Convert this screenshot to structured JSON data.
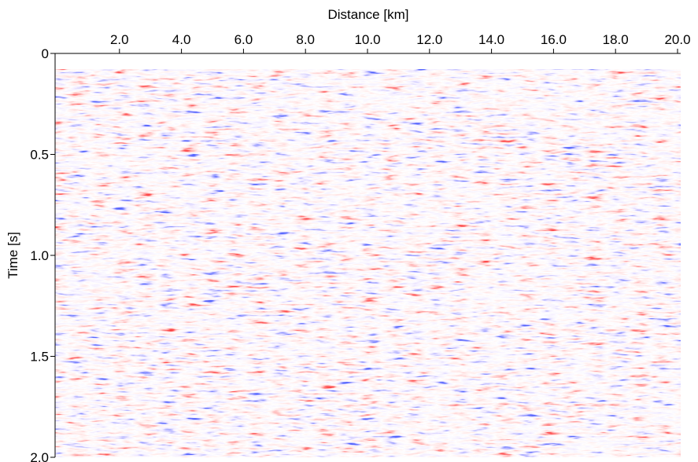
{
  "chart_data": {
    "type": "image",
    "xlabel": "Distance [km]",
    "ylabel": "Time [s]",
    "xlim": [
      0,
      20
    ],
    "xticks": [
      {
        "value": 2,
        "label": "2.0"
      },
      {
        "value": 4,
        "label": "4.0"
      },
      {
        "value": 6,
        "label": "6.0"
      },
      {
        "value": 8,
        "label": "8.0"
      },
      {
        "value": 10,
        "label": "10.0"
      },
      {
        "value": 12,
        "label": "12.0"
      },
      {
        "value": 14,
        "label": "14.0"
      },
      {
        "value": 16,
        "label": "16.0"
      },
      {
        "value": 18,
        "label": "18.0"
      },
      {
        "value": 20,
        "label": "20.0"
      }
    ],
    "ylim": [
      0,
      2
    ],
    "yticks": [
      0,
      0.5,
      {
        "value": 1,
        "label": "1.0"
      },
      1.5,
      {
        "value": 2,
        "label": "2.0"
      }
    ]
  }
}
